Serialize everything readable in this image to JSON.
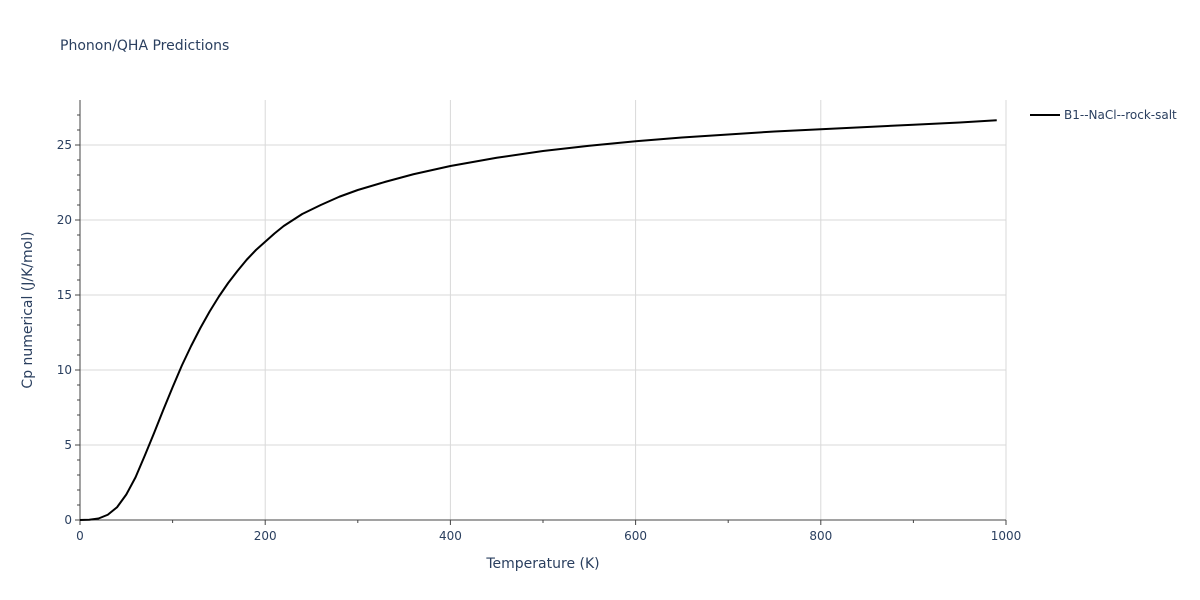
{
  "chart_data": {
    "type": "line",
    "title": "Phonon/QHA Predictions",
    "xlabel": "Temperature (K)",
    "ylabel": "Cp numerical (J/K/mol)",
    "xlim": [
      0,
      1000
    ],
    "ylim": [
      0,
      28
    ],
    "x_ticks": [
      0,
      200,
      400,
      600,
      800,
      1000
    ],
    "x_tick_labels": [
      "0",
      "200",
      "400",
      "600",
      "800",
      "1000"
    ],
    "x_minor_ticks": [
      100,
      300,
      500,
      700,
      900
    ],
    "y_ticks": [
      0,
      5,
      10,
      15,
      20,
      25
    ],
    "y_tick_labels": [
      "0",
      "5",
      "10",
      "15",
      "20",
      "25"
    ],
    "y_minor_ticks": [
      1,
      2,
      3,
      4,
      6,
      7,
      8,
      9,
      11,
      12,
      13,
      14,
      16,
      17,
      18,
      19,
      21,
      22,
      23,
      24,
      26,
      27
    ],
    "grid": true,
    "legend_position": "top-right outside",
    "series": [
      {
        "name": "B1--NaCl--rock-salt",
        "color": "#000000",
        "x": [
          0,
          10,
          20,
          30,
          40,
          50,
          60,
          70,
          80,
          90,
          100,
          110,
          120,
          130,
          140,
          150,
          160,
          170,
          180,
          190,
          200,
          210,
          220,
          240,
          260,
          280,
          300,
          330,
          360,
          400,
          450,
          500,
          550,
          600,
          650,
          700,
          750,
          800,
          850,
          900,
          950,
          990
        ],
        "y": [
          0,
          0.02,
          0.1,
          0.35,
          0.85,
          1.7,
          2.85,
          4.3,
          5.8,
          7.35,
          8.85,
          10.3,
          11.6,
          12.8,
          13.9,
          14.9,
          15.8,
          16.6,
          17.35,
          18.0,
          18.55,
          19.1,
          19.6,
          20.4,
          21.0,
          21.55,
          22.0,
          22.55,
          23.05,
          23.6,
          24.15,
          24.6,
          24.95,
          25.25,
          25.5,
          25.7,
          25.9,
          26.05,
          26.2,
          26.35,
          26.5,
          26.65
        ]
      }
    ]
  }
}
